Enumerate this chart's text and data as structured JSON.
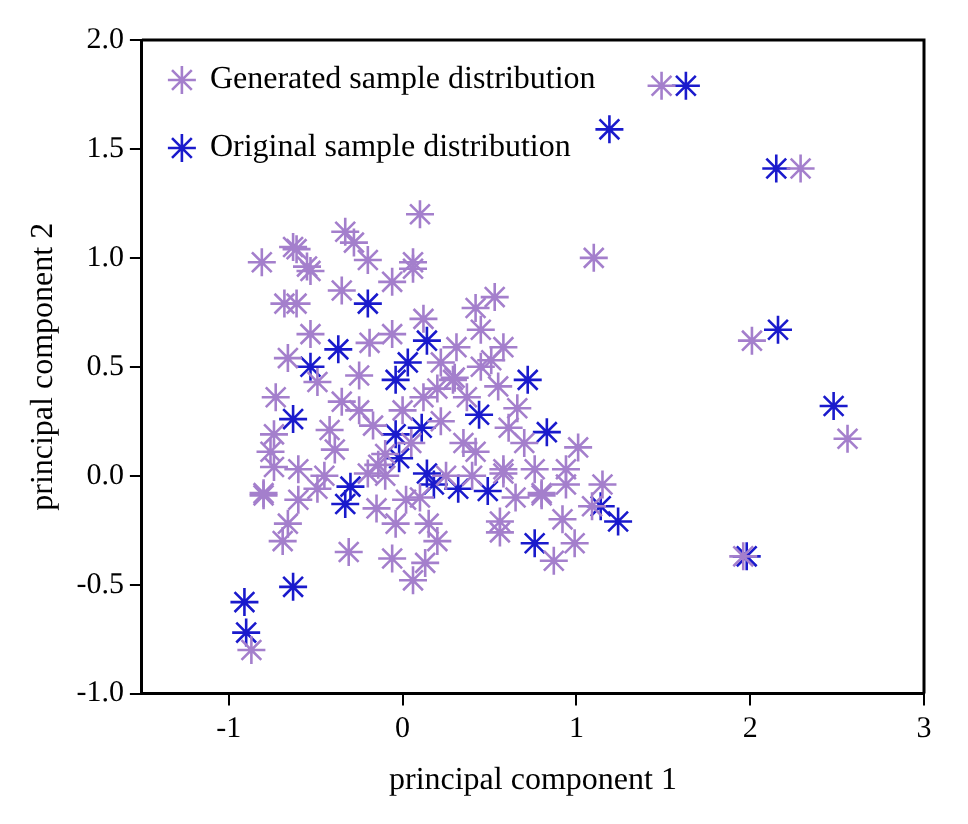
{
  "chart_data": {
    "type": "scatter",
    "xlabel": "principal component 1",
    "ylabel": "principal component 2",
    "xlim": [
      -1.5,
      3
    ],
    "xticks": [
      -1,
      0,
      1,
      2,
      3
    ],
    "ylim": [
      -1.0,
      2.0
    ],
    "yticks": [
      {
        "value": -1,
        "label": "-1.0"
      },
      {
        "value": -0.5,
        "label": "-0.5"
      },
      {
        "value": 0,
        "label": "0.0"
      },
      {
        "value": 0.5,
        "label": "0.5"
      },
      {
        "value": 1,
        "label": "1.0"
      },
      {
        "value": 1.5,
        "label": "1.5"
      },
      {
        "value": 2,
        "label": "2.0"
      }
    ],
    "grid": false,
    "legend": "top left",
    "marker": "cross",
    "series": [
      {
        "name": "Generated sample distribution",
        "color": "#a47fcc",
        "x": [
          1.49,
          2.29,
          0.1,
          1.1,
          -0.81,
          -0.33,
          -0.63,
          -0.28,
          0.06,
          -0.2,
          -0.55,
          -0.61,
          -0.53,
          0.06,
          -0.06,
          -0.35,
          -0.68,
          -0.61,
          0.53,
          0.42,
          0.12,
          -0.06,
          -0.53,
          0.45,
          2.01,
          -0.66,
          -0.19,
          0.31,
          0.58,
          0.51,
          0.22,
          -0.25,
          0.29,
          0.55,
          -0.73,
          -0.35,
          -0.49,
          0.12,
          0.37,
          0.66,
          2.56,
          -0.74,
          -0.42,
          -0.17,
          0.22,
          0.61,
          1.01,
          0.42,
          -0.76,
          -0.39,
          0.58,
          0.76,
          0.94,
          -0.6,
          -0.14,
          1.15,
          -0.8,
          -0.49,
          0.8,
          -0.8,
          -0.6,
          0.02,
          0.8,
          1.09,
          -0.66,
          0.15,
          0.56,
          0.92,
          -0.04,
          -0.69,
          0.56,
          0.99,
          -0.31,
          -0.06,
          0.13,
          0.87,
          1.96,
          0.06,
          -0.87,
          0.94,
          0.58,
          -0.2,
          -0.74,
          0.0,
          0.05,
          -0.1,
          0.25,
          0.35,
          0.2,
          -0.25,
          -0.1,
          0.3,
          0.45,
          0.4,
          -0.45,
          0.1,
          0.2,
          -0.15,
          0.7,
          0.65
        ],
        "values": [
          1.79,
          1.41,
          1.2,
          1.0,
          0.98,
          1.12,
          1.05,
          1.07,
          0.98,
          0.99,
          0.96,
          1.04,
          0.94,
          0.95,
          0.89,
          0.85,
          0.79,
          0.79,
          0.82,
          0.77,
          0.72,
          0.65,
          0.65,
          0.67,
          0.62,
          0.54,
          0.61,
          0.59,
          0.59,
          0.53,
          0.52,
          0.46,
          0.44,
          0.41,
          0.36,
          0.34,
          0.43,
          0.36,
          0.36,
          0.31,
          0.17,
          0.19,
          0.21,
          0.23,
          0.25,
          0.22,
          0.13,
          0.11,
          0.11,
          0.12,
          0.03,
          0.03,
          0.03,
          0.03,
          0.05,
          -0.04,
          -0.08,
          -0.06,
          -0.08,
          -0.09,
          -0.11,
          -0.11,
          -0.09,
          -0.14,
          -0.22,
          -0.22,
          -0.21,
          -0.2,
          -0.22,
          -0.3,
          -0.26,
          -0.31,
          -0.35,
          -0.38,
          -0.4,
          -0.39,
          -0.37,
          -0.48,
          -0.8,
          -0.04,
          0.01,
          0.01,
          0.04,
          0.3,
          0.15,
          0.1,
          0.0,
          0.15,
          0.4,
          0.3,
          0.0,
          0.45,
          0.5,
          0.0,
          0.0,
          -0.1,
          -0.3,
          -0.15,
          0.15,
          -0.1
        ]
      },
      {
        "name": "Original sample distribution",
        "color": "#1a1acc",
        "x": [
          1.63,
          1.19,
          2.15,
          -0.2,
          2.16,
          -0.37,
          -0.53,
          0.14,
          0.03,
          -0.04,
          0.72,
          2.48,
          -0.63,
          0.44,
          0.83,
          0.11,
          -0.04,
          -0.02,
          0.14,
          0.18,
          -0.3,
          0.32,
          0.49,
          -0.33,
          1.14,
          1.24,
          0.76,
          1.98,
          -0.63,
          -0.91,
          -0.9
        ],
        "values": [
          1.79,
          1.59,
          1.41,
          0.79,
          0.67,
          0.58,
          0.5,
          0.62,
          0.52,
          0.44,
          0.44,
          0.32,
          0.26,
          0.28,
          0.2,
          0.22,
          0.19,
          0.08,
          0.01,
          -0.04,
          -0.05,
          -0.06,
          -0.07,
          -0.13,
          -0.14,
          -0.21,
          -0.31,
          -0.37,
          -0.51,
          -0.58,
          -0.72
        ]
      }
    ]
  }
}
